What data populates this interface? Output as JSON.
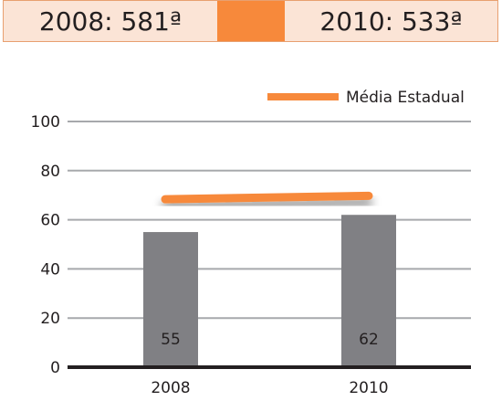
{
  "header": {
    "left_label": "2008: 581ª",
    "right_label": "2010: 533ª",
    "accent_color": "#f7893b",
    "cell_color": "#fbe4d6"
  },
  "chart_data": {
    "type": "bar",
    "categories": [
      "2008",
      "2010"
    ],
    "values": [
      55,
      62
    ],
    "bar_color": "#808084",
    "line_series": {
      "name": "Média Estadual",
      "values": [
        68,
        69
      ],
      "color": "#f7893b"
    },
    "yticks": [
      "0",
      "20",
      "40",
      "60",
      "80",
      "100"
    ],
    "ylim": [
      0,
      100
    ],
    "grid": true,
    "legend_position": "top-right"
  }
}
